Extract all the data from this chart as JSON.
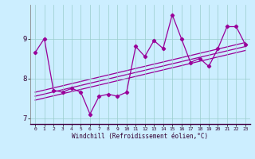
{
  "xlabel": "Windchill (Refroidissement éolien,°C)",
  "x_data": [
    0,
    1,
    2,
    3,
    4,
    5,
    6,
    7,
    8,
    9,
    10,
    11,
    12,
    13,
    14,
    15,
    16,
    17,
    18,
    19,
    20,
    21,
    22,
    23
  ],
  "y_data": [
    8.65,
    9.0,
    7.7,
    7.65,
    7.75,
    7.65,
    7.1,
    7.55,
    7.6,
    7.55,
    7.65,
    8.8,
    8.55,
    8.95,
    8.75,
    9.6,
    9.0,
    8.4,
    8.5,
    8.3,
    8.75,
    9.3,
    9.3,
    8.85
  ],
  "trend_lines": [
    {
      "x": [
        0,
        23
      ],
      "y": [
        7.45,
        8.7
      ]
    },
    {
      "x": [
        0,
        23
      ],
      "y": [
        7.55,
        8.8
      ]
    },
    {
      "x": [
        0,
        23
      ],
      "y": [
        7.65,
        8.9
      ]
    }
  ],
  "line_color": "#990099",
  "bg_color": "#cceeff",
  "grid_color": "#99cccc",
  "ylim": [
    6.85,
    9.85
  ],
  "xlim": [
    -0.5,
    23.5
  ],
  "yticks": [
    7,
    8,
    9
  ],
  "xticks": [
    0,
    1,
    2,
    3,
    4,
    5,
    6,
    7,
    8,
    9,
    10,
    11,
    12,
    13,
    14,
    15,
    16,
    17,
    18,
    19,
    20,
    21,
    22,
    23
  ]
}
